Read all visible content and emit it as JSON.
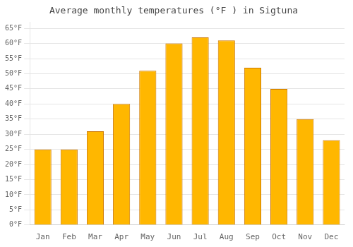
{
  "chart_data": {
    "type": "bar",
    "title": "Average monthly temperatures (°F ) in Sigtuna",
    "categories": [
      "Jan",
      "Feb",
      "Mar",
      "Apr",
      "May",
      "Jun",
      "Jul",
      "Aug",
      "Sep",
      "Oct",
      "Nov",
      "Dec"
    ],
    "values": [
      25,
      25,
      31,
      40,
      51,
      60,
      62,
      61,
      52,
      45,
      35,
      28
    ],
    "color": "#FFB700",
    "ylim": [
      0,
      67
    ],
    "yticks": [
      {
        "value": 0,
        "label": "0°F"
      },
      {
        "value": 5,
        "label": "5°F"
      },
      {
        "value": 10,
        "label": "10°F"
      },
      {
        "value": 15,
        "label": "15°F"
      },
      {
        "value": 20,
        "label": "20°F"
      },
      {
        "value": 25,
        "label": "25°F"
      },
      {
        "value": 30,
        "label": "30°F"
      },
      {
        "value": 35,
        "label": "35°F"
      },
      {
        "value": 40,
        "label": "40°F"
      },
      {
        "value": 45,
        "label": "45°F"
      },
      {
        "value": 50,
        "label": "50°F"
      },
      {
        "value": 55,
        "label": "55°F"
      },
      {
        "value": 60,
        "label": "60°F"
      },
      {
        "value": 65,
        "label": "65°F"
      }
    ],
    "grid": true
  }
}
